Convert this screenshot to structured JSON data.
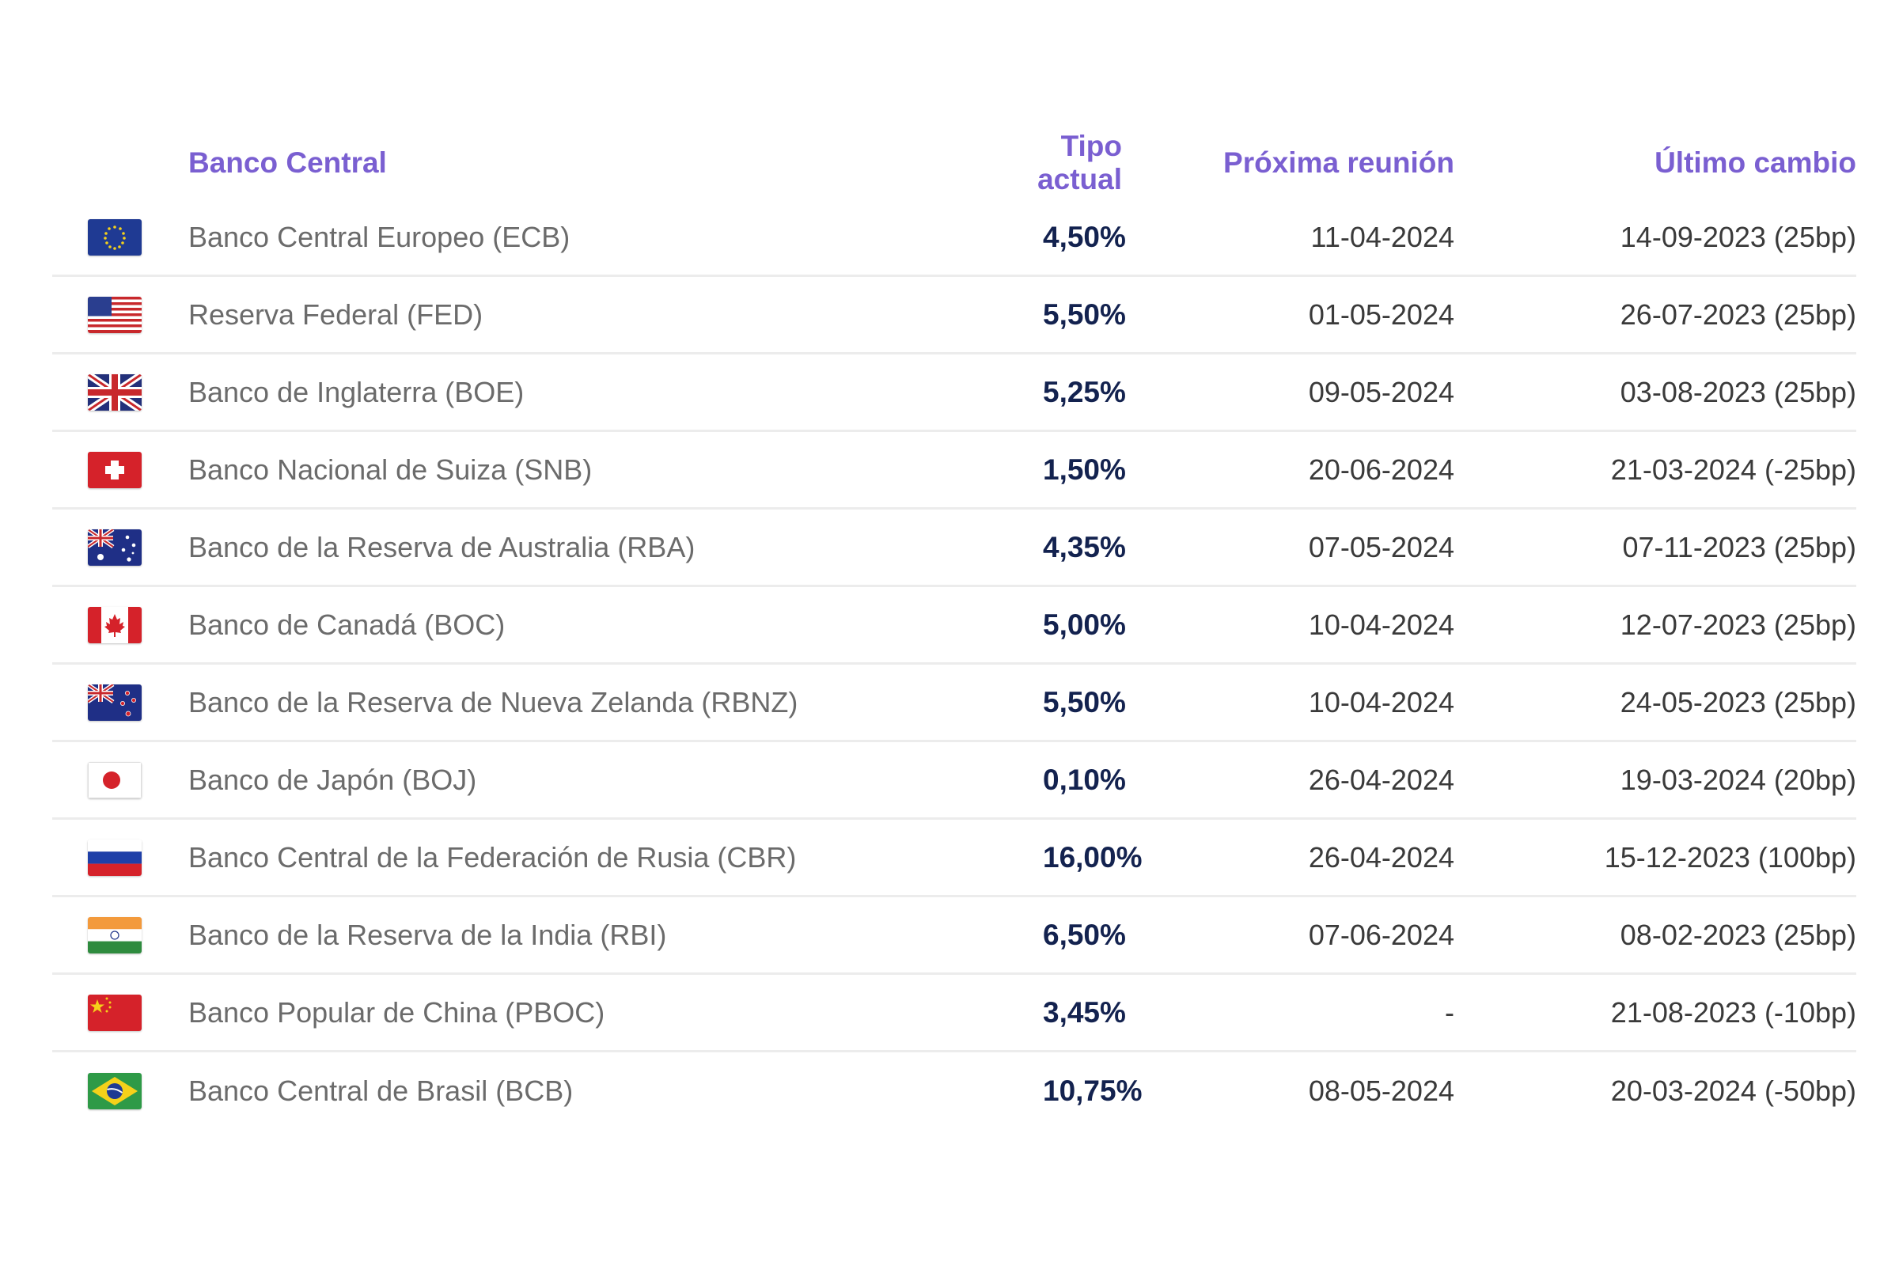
{
  "table": {
    "headers": {
      "bank": "Banco Central",
      "rate": "Tipo actual",
      "next": "Próxima reunión",
      "last": "Último cambio"
    },
    "rows": [
      {
        "flag": "eu-flag-icon",
        "bank": "Banco Central Europeo (ECB)",
        "rate": "4,50%",
        "next": "11-04-2024",
        "last": "14-09-2023 (25bp)"
      },
      {
        "flag": "us-flag-icon",
        "bank": "Reserva Federal (FED)",
        "rate": "5,50%",
        "next": "01-05-2024",
        "last": "26-07-2023 (25bp)"
      },
      {
        "flag": "uk-flag-icon",
        "bank": "Banco de Inglaterra (BOE)",
        "rate": "5,25%",
        "next": "09-05-2024",
        "last": "03-08-2023 (25bp)"
      },
      {
        "flag": "swiss-flag-icon",
        "bank": "Banco Nacional de Suiza (SNB)",
        "rate": "1,50%",
        "next": "20-06-2024",
        "last": "21-03-2024 (-25bp)"
      },
      {
        "flag": "australia-flag-icon",
        "bank": "Banco de la Reserva de Australia (RBA)",
        "rate": "4,35%",
        "next": "07-05-2024",
        "last": "07-11-2023 (25bp)"
      },
      {
        "flag": "canada-flag-icon",
        "bank": "Banco de Canadá (BOC)",
        "rate": "5,00%",
        "next": "10-04-2024",
        "last": "12-07-2023 (25bp)"
      },
      {
        "flag": "new-zealand-flag-icon",
        "bank": "Banco de la Reserva de Nueva Zelanda (RBNZ)",
        "rate": "5,50%",
        "next": "10-04-2024",
        "last": "24-05-2023 (25bp)"
      },
      {
        "flag": "japan-flag-icon",
        "bank": "Banco de Japón (BOJ)",
        "rate": "0,10%",
        "next": "26-04-2024",
        "last": "19-03-2024 (20bp)"
      },
      {
        "flag": "russia-flag-icon",
        "bank": "Banco Central de la Federación de Rusia (CBR)",
        "rate": "16,00%",
        "next": "26-04-2024",
        "last": "15-12-2023 (100bp)"
      },
      {
        "flag": "india-flag-icon",
        "bank": "Banco de la Reserva de la India (RBI)",
        "rate": "6,50%",
        "next": "07-06-2024",
        "last": "08-02-2023 (25bp)"
      },
      {
        "flag": "china-flag-icon",
        "bank": "Banco Popular de China (PBOC)",
        "rate": "3,45%",
        "next": "-",
        "last": "21-08-2023 (-10bp)"
      },
      {
        "flag": "brazil-flag-icon",
        "bank": "Banco Central de Brasil (BCB)",
        "rate": "10,75%",
        "next": "08-05-2024",
        "last": "20-03-2024 (-50bp)"
      }
    ]
  },
  "colors": {
    "header": "#7a5fd1",
    "rate": "#13224f",
    "bank": "#6b6b6b",
    "divider": "#ececec"
  }
}
